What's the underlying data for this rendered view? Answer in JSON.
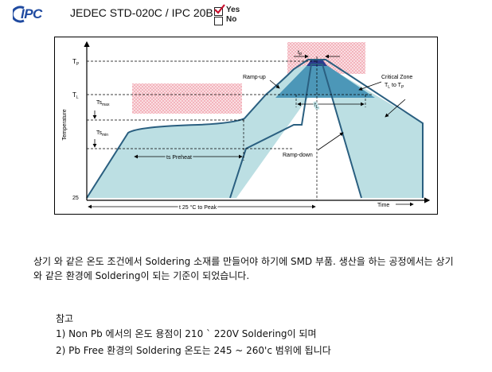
{
  "header": {
    "logo_text": "IPC",
    "title": "JEDEC STD-020C / IPC 20B",
    "options": [
      {
        "label": "Yes",
        "checked": true
      },
      {
        "label": "No",
        "checked": false
      }
    ]
  },
  "diagram": {
    "y_axis_label": "Temperature",
    "x_axis_label": "Time",
    "y_ticks": {
      "tp": "T",
      "tp_sub": "P",
      "tl": "T",
      "tl_sub": "L",
      "ts_max": "Ts",
      "ts_max_sub": "max",
      "ts_min": "Ts",
      "ts_min_sub": "min",
      "t25": "25"
    },
    "labels": {
      "ramp_up": "Ramp-up",
      "ramp_down": "Ramp-down",
      "critical_zone_1": "Critical Zone",
      "critical_zone_2": "T",
      "critical_zone_2_sub1": "L",
      "critical_zone_2_mid": " to T",
      "critical_zone_2_sub2": "P",
      "ts_preheat": "ts Preheat",
      "t25_to_peak": "t 25 °C to Peak",
      "tp_time": "t",
      "tp_time_sub": "P",
      "tl_time": "t",
      "tl_time_sub": "L"
    },
    "colors": {
      "fill": "#bcdfe3",
      "critical": "#3f8fb3",
      "peak": "#2d3c8e",
      "hatch": "#f2b8c0"
    }
  },
  "body": {
    "paragraph": "상기 와 같은 온도 조건에서 Soldering 소재를 만들어야 하기에 SMD 부품. 생산을 하는 공정에서는 상기 와 같은 환경에 Soldering이 되는 기준이 되었습니다.",
    "note_title": "참고",
    "notes": [
      "1) Non Pb 에서의 온도 용점이 210 ` 220V Soldering이 되며",
      "2) Pb Free 환경의 Soldering 온도는   245 ~ 260'c 범위에 됩니다"
    ]
  }
}
